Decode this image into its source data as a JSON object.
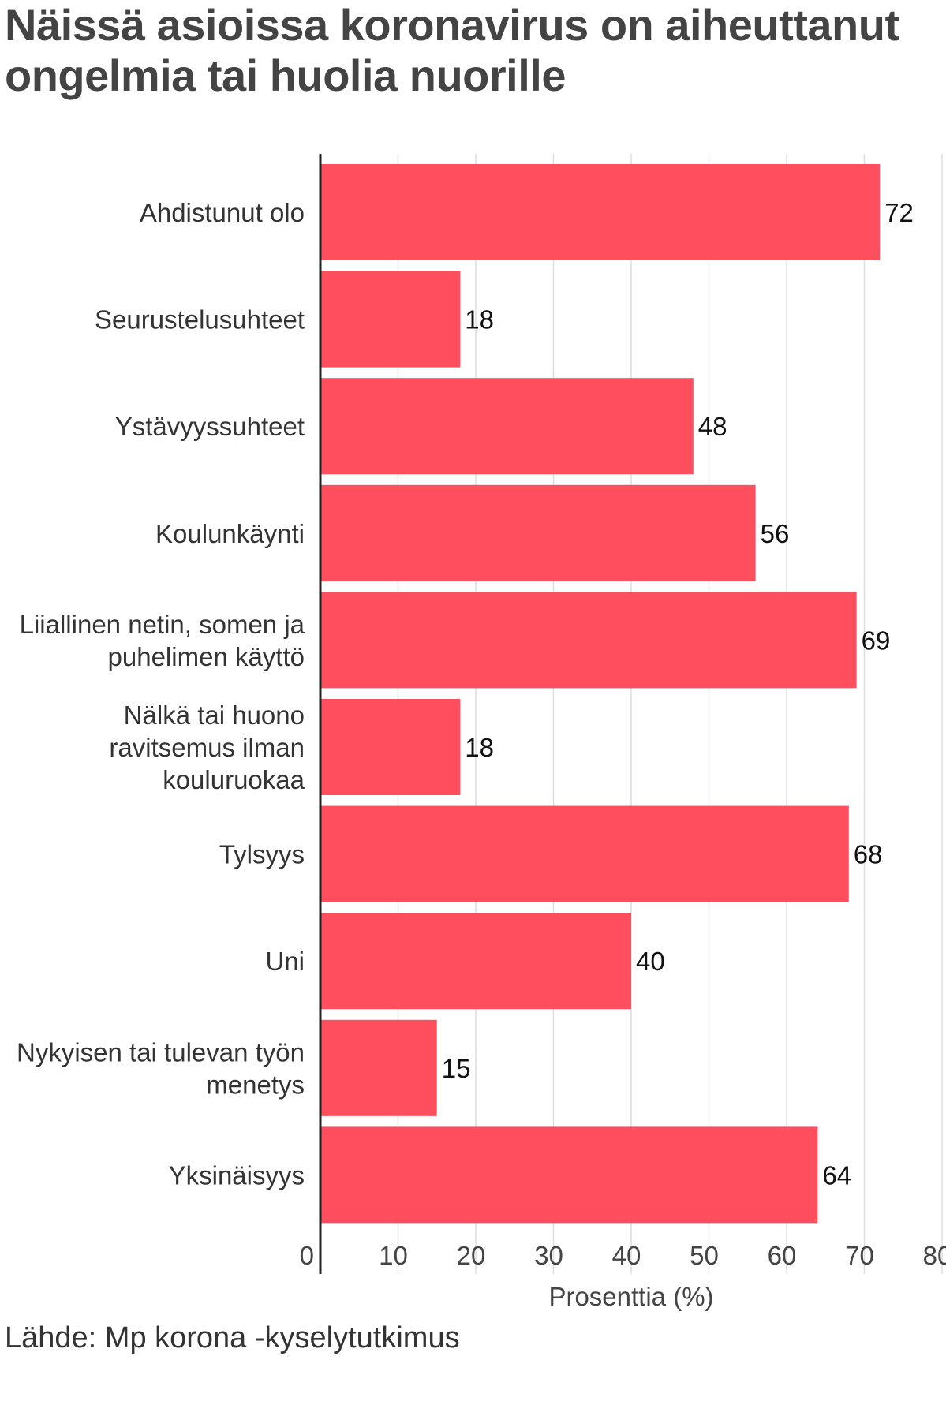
{
  "title": {
    "line1": "Näissä asioissa koronavirus on aiheuttanut",
    "line2": "ongelmia tai huolia nuorille"
  },
  "source": "Lähde: Mp korona -kyselytutkimus",
  "colors": {
    "bar": "#FF4E5E",
    "grid": "#DDDDDD",
    "axis": "#222222",
    "label": "#333333",
    "value": "#111111",
    "tick": "#444444"
  },
  "chart_data": {
    "type": "bar",
    "orientation": "horizontal",
    "categories": [
      [
        "Ahdistunut olo"
      ],
      [
        "Seurustelusuhteet"
      ],
      [
        "Ystävyyssuhteet"
      ],
      [
        "Koulunkäynti"
      ],
      [
        "Liiallinen netin, somen ja",
        "puhelimen käyttö"
      ],
      [
        "Nälkä tai huono",
        "ravitsemus ilman",
        "kouluruokaa"
      ],
      [
        "Tylsyys"
      ],
      [
        "Uni"
      ],
      [
        "Nykyisen tai tulevan työn",
        "menetys"
      ],
      [
        "Yksinäisyys"
      ]
    ],
    "values": [
      72,
      18,
      48,
      56,
      69,
      18,
      68,
      40,
      15,
      64
    ],
    "xlabel": "Prosenttia (%)",
    "xlim": [
      0,
      80
    ],
    "xticks": [
      0,
      10,
      20,
      30,
      40,
      50,
      60,
      70,
      80
    ],
    "grid": true,
    "data_labels": true
  }
}
